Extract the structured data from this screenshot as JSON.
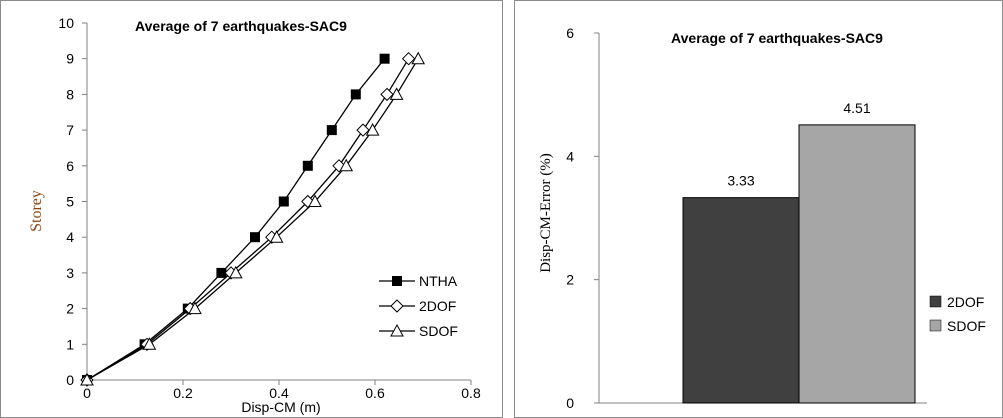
{
  "chart_data": [
    {
      "type": "line",
      "title": "Average of 7 earthquakes-SAC9",
      "xlabel": "Disp-CM (m)",
      "ylabel": "Storey",
      "xlim": [
        0,
        0.8
      ],
      "ylim": [
        0,
        10
      ],
      "x_ticks": [
        "0",
        "0.2",
        "0.4",
        "0.6",
        "0.8"
      ],
      "y_ticks": [
        "0",
        "1",
        "2",
        "3",
        "4",
        "5",
        "6",
        "7",
        "8",
        "9",
        "10"
      ],
      "grid": false,
      "legend_position": "bottom-right",
      "series": [
        {
          "name": "NTHA",
          "marker": "filled-square",
          "color": "#000000",
          "x": [
            0,
            0.12,
            0.21,
            0.28,
            0.35,
            0.41,
            0.46,
            0.51,
            0.56,
            0.62
          ],
          "y": [
            0,
            1,
            2,
            3,
            4,
            5,
            6,
            7,
            8,
            9
          ]
        },
        {
          "name": "2DOF",
          "marker": "open-diamond",
          "color": "#000000",
          "x": [
            0,
            0.125,
            0.215,
            0.3,
            0.385,
            0.46,
            0.525,
            0.575,
            0.625,
            0.67
          ],
          "y": [
            0,
            1,
            2,
            3,
            4,
            5,
            6,
            7,
            8,
            9
          ]
        },
        {
          "name": "SDOF",
          "marker": "open-triangle",
          "color": "#000000",
          "x": [
            0,
            0.13,
            0.225,
            0.31,
            0.395,
            0.475,
            0.54,
            0.595,
            0.645,
            0.69
          ],
          "y": [
            0,
            1,
            2,
            3,
            4,
            5,
            6,
            7,
            8,
            9
          ]
        }
      ]
    },
    {
      "type": "bar",
      "title": "Average of 7 earthquakes-SAC9",
      "xlabel": "",
      "ylabel": "Disp-CM-Error (%)",
      "ylim": [
        0,
        6
      ],
      "y_ticks": [
        "0",
        "2",
        "4",
        "6"
      ],
      "grid": false,
      "legend_position": "right",
      "series": [
        {
          "name": "2DOF",
          "values": [
            3.33
          ],
          "label": "3.33",
          "color": "#404040"
        },
        {
          "name": "SDOF",
          "values": [
            4.51
          ],
          "label": "4.51",
          "color": "#a6a6a6"
        }
      ]
    }
  ]
}
